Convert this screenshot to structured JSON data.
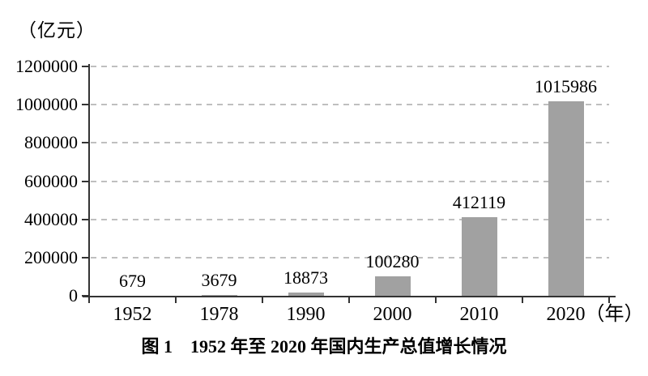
{
  "chart_data": {
    "type": "bar",
    "title": "图 1　1952 年至 2020 年国内生产总值增长情况",
    "unit_label": "（亿元）",
    "categories": [
      "1952",
      "1978",
      "1990",
      "2000",
      "2010",
      "2020"
    ],
    "xlabel_suffix": "（年）",
    "values": [
      679,
      3679,
      18873,
      100280,
      412119,
      1015986
    ],
    "value_labels": [
      "679",
      "3679",
      "18873",
      "100280",
      "412119",
      "1015986"
    ],
    "ylim": [
      0,
      1200000
    ],
    "yticks": [
      0,
      200000,
      400000,
      600000,
      800000,
      1000000,
      1200000
    ],
    "grid": "dashed-horizontal",
    "legend": "none",
    "bar_color": "#a1a1a1",
    "axis_color": "#333333",
    "grid_color": "#bfbfbf",
    "text_color": "#000000"
  }
}
